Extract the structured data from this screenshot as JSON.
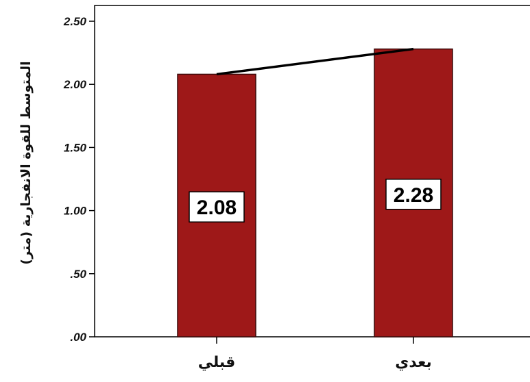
{
  "chart_data": {
    "type": "bar",
    "categories": [
      "قبلي",
      "بعدي"
    ],
    "values": [
      2.08,
      2.28
    ],
    "data_labels": [
      "2.08",
      "2.28"
    ],
    "ylabel": "المتوسط للقوة الانفجارية (متر)",
    "xlabel": "",
    "ylim": [
      0,
      2.5
    ],
    "yticks": [
      ".00",
      ".50",
      "1.00",
      "1.50",
      "2.00",
      "2.50"
    ],
    "grid": false,
    "legend": "none",
    "connector_line": true,
    "bar_color": "#9e1818",
    "bar_stroke": "#3a0a0a",
    "line_color": "#000000"
  }
}
